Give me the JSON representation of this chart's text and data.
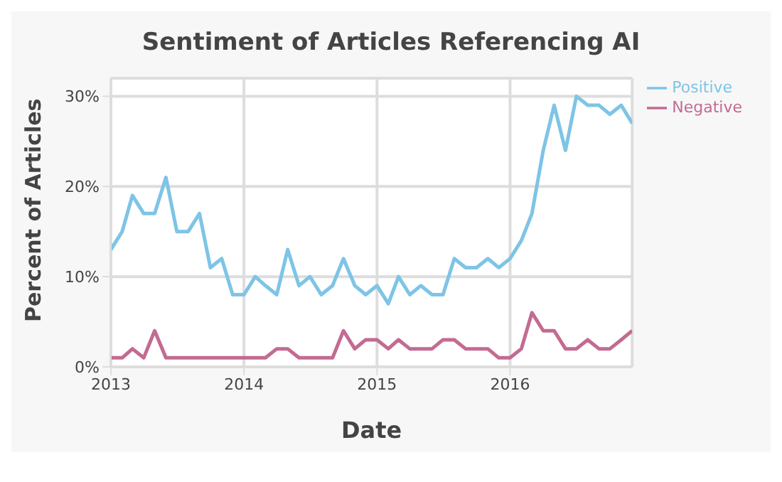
{
  "chart_data": {
    "type": "line",
    "title": "Sentiment of Articles Referencing AI",
    "xlabel": "Date",
    "ylabel": "Percent of Articles",
    "x": [
      "2013-01",
      "2013-02",
      "2013-03",
      "2013-04",
      "2013-05",
      "2013-06",
      "2013-07",
      "2013-08",
      "2013-09",
      "2013-10",
      "2013-11",
      "2013-12",
      "2014-01",
      "2014-02",
      "2014-03",
      "2014-04",
      "2014-05",
      "2014-06",
      "2014-07",
      "2014-08",
      "2014-09",
      "2014-10",
      "2014-11",
      "2014-12",
      "2015-01",
      "2015-02",
      "2015-03",
      "2015-04",
      "2015-05",
      "2015-06",
      "2015-07",
      "2015-08",
      "2015-09",
      "2015-10",
      "2015-11",
      "2015-12",
      "2016-01",
      "2016-02",
      "2016-03",
      "2016-04",
      "2016-05",
      "2016-06",
      "2016-07",
      "2016-08",
      "2016-09",
      "2016-10",
      "2016-11",
      "2016-12"
    ],
    "series": [
      {
        "name": "Positive",
        "color": "#7ec4e6",
        "values": [
          13,
          15,
          19,
          17,
          17,
          21,
          15,
          15,
          17,
          11,
          12,
          8,
          8,
          10,
          9,
          8,
          13,
          9,
          10,
          8,
          9,
          12,
          9,
          8,
          9,
          7,
          10,
          8,
          9,
          8,
          8,
          12,
          11,
          11,
          12,
          11,
          12,
          14,
          17,
          24,
          29,
          24,
          30,
          29,
          29,
          28,
          29,
          27
        ]
      },
      {
        "name": "Negative",
        "color": "#c36b92",
        "values": [
          1,
          1,
          2,
          1,
          4,
          1,
          1,
          1,
          1,
          1,
          1,
          1,
          1,
          1,
          1,
          2,
          2,
          1,
          1,
          1,
          1,
          4,
          2,
          3,
          3,
          2,
          3,
          2,
          2,
          2,
          3,
          3,
          2,
          2,
          2,
          1,
          1,
          2,
          6,
          4,
          4,
          2,
          2,
          3,
          2,
          2,
          3,
          4
        ]
      }
    ],
    "xlim": [
      "2013-01",
      "2016-12"
    ],
    "xticks": [
      {
        "value": "2013-01",
        "label": "2013"
      },
      {
        "value": "2014-01",
        "label": "2014"
      },
      {
        "value": "2015-01",
        "label": "2015"
      },
      {
        "value": "2016-01",
        "label": "2016"
      }
    ],
    "ylim": [
      0,
      32
    ],
    "yticks": [
      {
        "value": 0,
        "label": "0%"
      },
      {
        "value": 10,
        "label": "10%"
      },
      {
        "value": 20,
        "label": "20%"
      },
      {
        "value": 30,
        "label": "30%"
      }
    ],
    "grid": true,
    "legend": "top right",
    "marker": "none",
    "line_style": "solid"
  }
}
